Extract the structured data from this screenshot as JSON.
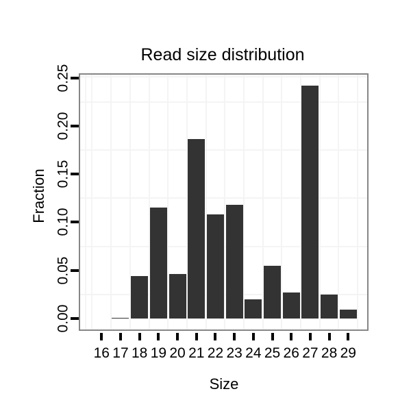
{
  "chart_data": {
    "type": "bar",
    "title": "Read size distribution",
    "xlabel": "Size",
    "ylabel": "Fraction",
    "categories": [
      "16",
      "17",
      "18",
      "19",
      "20",
      "21",
      "22",
      "23",
      "24",
      "25",
      "26",
      "27",
      "28",
      "29"
    ],
    "values": [
      0,
      0.001,
      0.044,
      0.115,
      0.046,
      0.186,
      0.108,
      0.118,
      0.02,
      0.055,
      0.027,
      0.242,
      0.025,
      0.009
    ],
    "y_tick_labels": [
      "0.00",
      "0.05",
      "0.10",
      "0.15",
      "0.20",
      "0.25"
    ],
    "y_tick_values": [
      0.0,
      0.05,
      0.1,
      0.15,
      0.2,
      0.25
    ],
    "ylim": [
      0,
      0.25
    ],
    "legend": "none",
    "grid": {
      "style": "faint minor lines between ticks",
      "on": true
    },
    "colors": {
      "bar": "#333333",
      "panel_border": "#868686",
      "grid_line": "#f4f4f4",
      "text": "#000000",
      "tick": "#000000",
      "background": "#ffffff"
    }
  }
}
